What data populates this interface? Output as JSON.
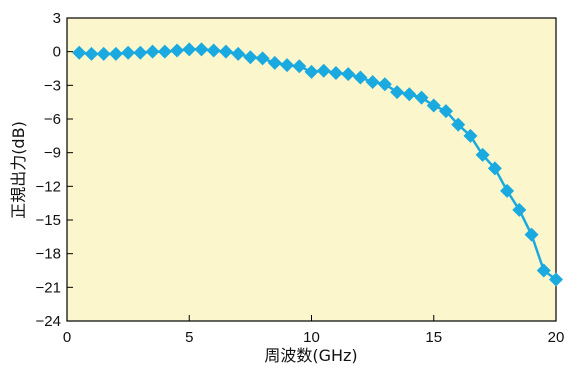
{
  "chart_data": {
    "type": "line",
    "title": "",
    "xlabel": "周波数(GHz)",
    "ylabel": "正規出力(dB)",
    "xlim": [
      0,
      20
    ],
    "ylim": [
      -24,
      3
    ],
    "x_ticks": [
      0,
      5,
      10,
      15,
      20
    ],
    "x_tick_labels": [
      "0",
      "5",
      "10",
      "15",
      "20"
    ],
    "y_ticks": [
      3,
      0,
      -3,
      -6,
      -9,
      -12,
      -15,
      -18,
      -21,
      -24
    ],
    "y_tick_labels": [
      "3",
      "0",
      "−3",
      "−6",
      "−9",
      "−12",
      "−15",
      "−18",
      "−21",
      "−24"
    ],
    "grid": false,
    "legend": "none",
    "colors": {
      "plot_background": "#fcf6cc",
      "series": "#1aaae0",
      "axis": "#000000"
    },
    "series": [
      {
        "marker": "diamond",
        "x": [
          0.5,
          1.0,
          1.5,
          2.0,
          2.5,
          3.0,
          3.5,
          4.0,
          4.5,
          5.0,
          5.5,
          6.0,
          6.5,
          7.0,
          7.5,
          8.0,
          8.5,
          9.0,
          9.5,
          10.0,
          10.5,
          11.0,
          11.5,
          12.0,
          12.5,
          13.0,
          13.5,
          14.0,
          14.5,
          15.0,
          15.5,
          16.0,
          16.5,
          17.0,
          17.5,
          18.0,
          18.5,
          19.0,
          19.5,
          20.0
        ],
        "values": [
          -0.1,
          -0.2,
          -0.2,
          -0.2,
          -0.1,
          -0.1,
          0.0,
          0.0,
          0.1,
          0.2,
          0.2,
          0.1,
          0.0,
          -0.2,
          -0.5,
          -0.6,
          -1.0,
          -1.2,
          -1.3,
          -1.8,
          -1.7,
          -1.9,
          -2.0,
          -2.3,
          -2.7,
          -2.9,
          -3.6,
          -3.8,
          -4.1,
          -4.8,
          -5.3,
          -6.5,
          -7.5,
          -9.2,
          -10.4,
          -12.4,
          -14.1,
          -16.3,
          -19.5,
          -20.3
        ]
      }
    ]
  }
}
